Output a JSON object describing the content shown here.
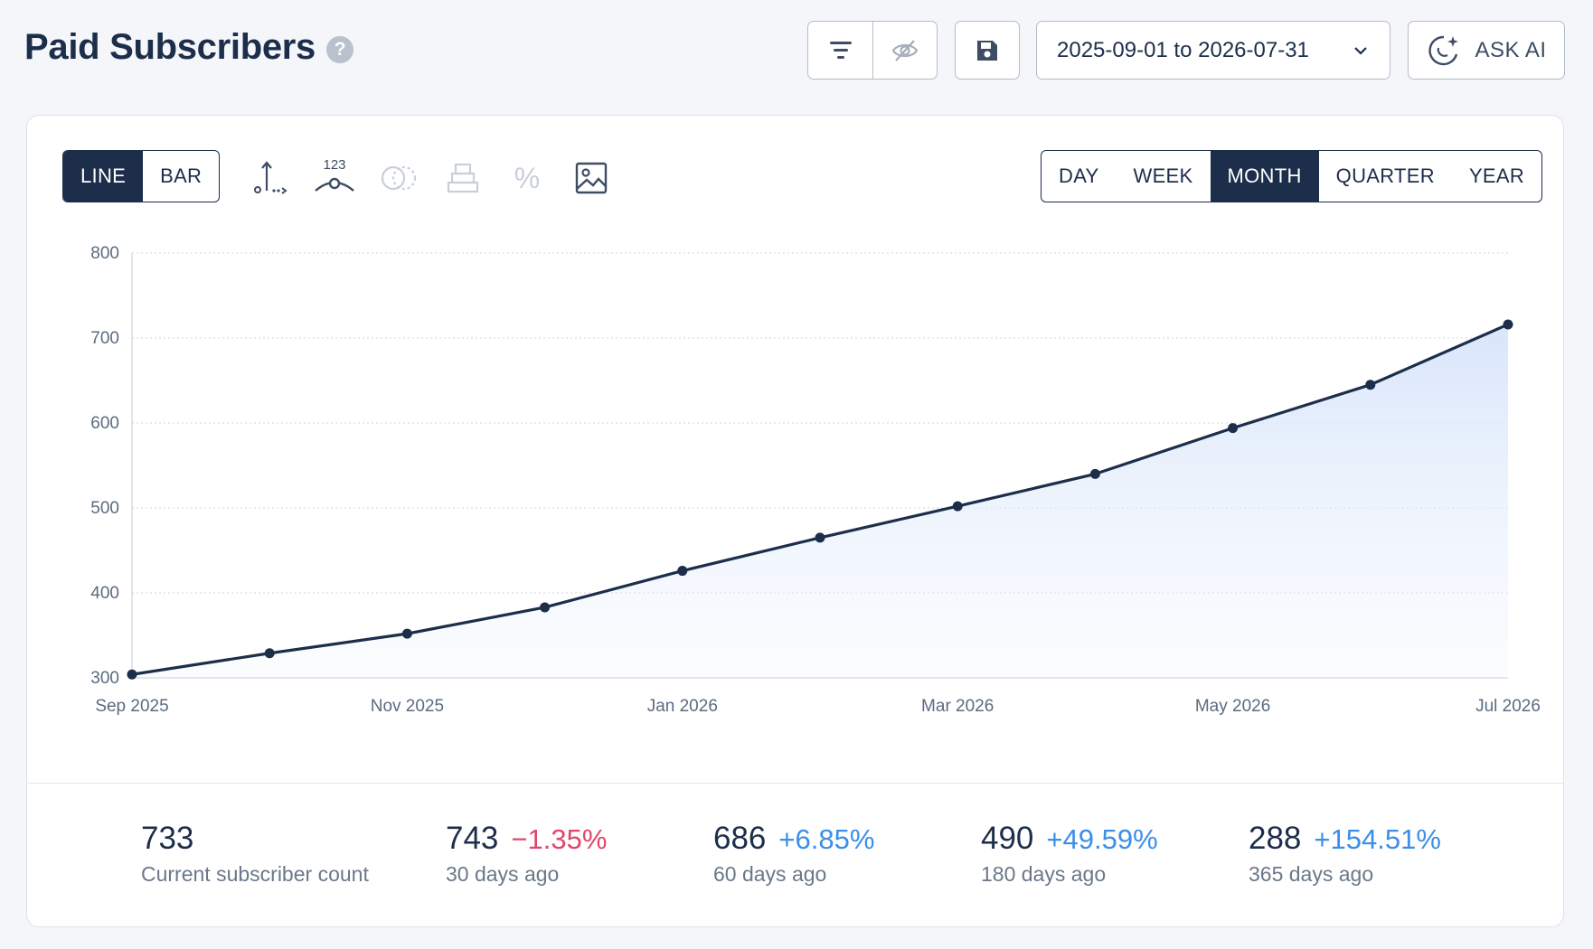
{
  "header": {
    "title": "Paid Subscribers",
    "help_symbol": "?",
    "date_range": "2025-09-01 to 2026-07-31",
    "ask_ai_label": "ASK AI"
  },
  "toolbar": {
    "icons": [
      "filter-lines-icon",
      "eye-off-icon",
      "save-icon",
      "chevron-down-icon",
      "ai-sparkle-icon"
    ]
  },
  "chart_controls": {
    "chart_types": [
      "LINE",
      "BAR"
    ],
    "active_chart_type": "LINE",
    "tool_icons": [
      "axis-scale-icon",
      "data-labels-icon",
      "compare-icon",
      "stack-icon",
      "percent-icon",
      "image-export-icon"
    ],
    "data_labels_icon_text": "123",
    "percent_symbol": "%",
    "granularity": [
      "DAY",
      "WEEK",
      "MONTH",
      "QUARTER",
      "YEAR"
    ],
    "active_granularity": "MONTH"
  },
  "chart_data": {
    "type": "area",
    "x": [
      "2025-09",
      "2025-10",
      "2025-11",
      "2025-12",
      "2026-01",
      "2026-02",
      "2026-03",
      "2026-04",
      "2026-05",
      "2026-06",
      "2026-07"
    ],
    "x_tick_labels": [
      "Sep 2025",
      "Nov 2025",
      "Jan 2026",
      "Mar 2026",
      "May 2026",
      "Jul 2026"
    ],
    "x_tick_positions": [
      "2025-09",
      "2025-11",
      "2026-01",
      "2026-03",
      "2026-05",
      "2026-07"
    ],
    "series": [
      {
        "values": [
          304,
          329,
          352,
          383,
          426,
          465,
          502,
          540,
          594,
          645,
          716
        ]
      }
    ],
    "ylim": [
      300,
      800
    ],
    "y_ticks": [
      300,
      400,
      500,
      600,
      700,
      800
    ],
    "grid": true,
    "line_color": "#1c2e4a",
    "fill_color": "#dbe7fb"
  },
  "stats": [
    {
      "value": "733",
      "change": "",
      "label": "Current subscriber count"
    },
    {
      "value": "743",
      "change": "−1.35%",
      "direction": "negative",
      "label": "30 days ago"
    },
    {
      "value": "686",
      "change": "+6.85%",
      "direction": "positive",
      "label": "60 days ago"
    },
    {
      "value": "490",
      "change": "+49.59%",
      "direction": "positive",
      "label": "180 days ago"
    },
    {
      "value": "288",
      "change": "+154.51%",
      "direction": "positive",
      "label": "365 days ago"
    }
  ],
  "colors": {
    "primary": "#1c2e4a",
    "negative": "#e0476b",
    "positive": "#3b8fe9",
    "background": "#f4f6fa"
  }
}
